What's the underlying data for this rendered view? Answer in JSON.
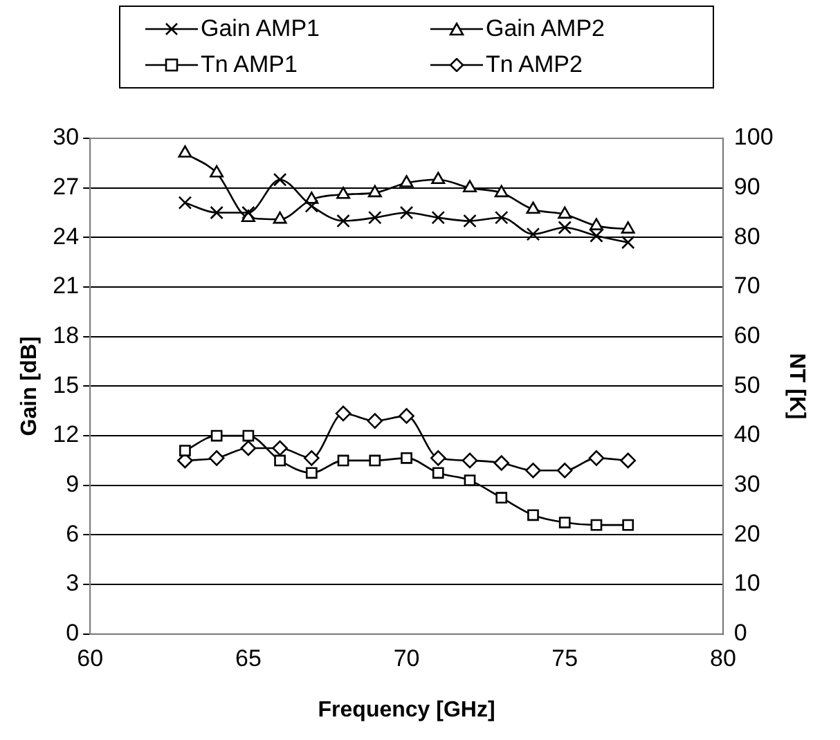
{
  "chart_data": {
    "type": "line",
    "xlabel": "Frequency [GHz]",
    "ylabel": "Gain [dB]",
    "y2label": "NT [K]",
    "x": [
      63,
      64,
      65,
      66,
      67,
      68,
      69,
      70,
      71,
      72,
      73,
      74,
      75,
      76,
      77
    ],
    "series": [
      {
        "name": "Gain AMP1",
        "color": "#000000",
        "marker": "cross",
        "values": [
          26.1,
          25.5,
          25.5,
          27.5,
          25.9,
          25.0,
          25.2,
          25.5,
          25.2,
          25.0,
          25.2,
          24.2,
          24.6,
          24.1,
          23.7
        ]
      },
      {
        "name": "Gain AMP2",
        "color": "#000000",
        "marker": "triangle",
        "values": [
          29.1,
          27.9,
          25.2,
          25.1,
          26.3,
          26.6,
          26.7,
          27.3,
          27.5,
          27.0,
          26.7,
          25.7,
          25.4,
          24.7,
          24.5
        ]
      },
      {
        "name": "Tn AMP1",
        "color": "#000000",
        "marker": "square",
        "axis": "y2",
        "values": [
          37,
          40,
          40,
          35,
          32.5,
          35,
          35,
          35.5,
          32.5,
          31,
          27.5,
          24,
          22.5,
          22,
          22
        ]
      },
      {
        "name": "Tn AMP2",
        "color": "#000000",
        "marker": "diamond",
        "axis": "y2",
        "values": [
          35,
          35.5,
          37.5,
          37.5,
          35.5,
          44.5,
          43,
          44,
          35.5,
          35,
          34.5,
          33,
          33,
          35.5,
          35
        ]
      }
    ],
    "xlim": [
      60,
      80
    ],
    "xticks": [
      60,
      65,
      70,
      75,
      80
    ],
    "ylim": [
      0,
      30
    ],
    "yticks": [
      0,
      3,
      6,
      9,
      12,
      15,
      18,
      21,
      24,
      27,
      30
    ],
    "y2lim": [
      0,
      100
    ],
    "y2ticks": [
      0,
      10,
      20,
      30,
      40,
      50,
      60,
      70,
      80,
      90,
      100
    ],
    "grid": "y",
    "legend": "top",
    "line_style": "solid"
  }
}
